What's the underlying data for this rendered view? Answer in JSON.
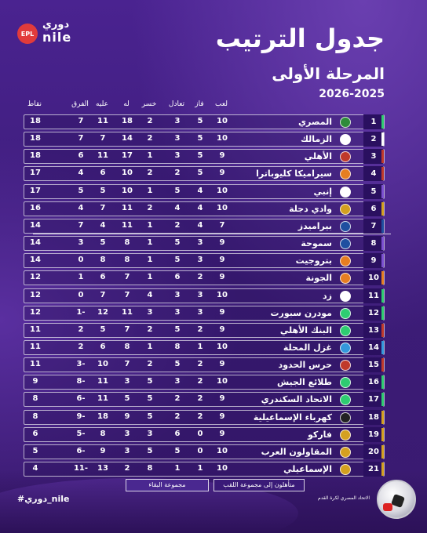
{
  "brand": {
    "logo_badge": "EPL",
    "logo_ar": "دوري",
    "logo_en": "nile"
  },
  "title": "جدول الترتيب",
  "subtitle": "المرحلة الأولى",
  "season": "2026-2025",
  "headers": {
    "played": "لعب",
    "won": "فاز",
    "drawn": "تعادل",
    "lost": "خسر",
    "gf": "له",
    "ga": "عليه",
    "gd": "الفرق",
    "pts": "نقاط"
  },
  "colors": {
    "green_zone": "#2ecc71",
    "red_zone": "#c0392b",
    "gold": "#d4a020",
    "purple": "#7b4fd0",
    "white": "#ffffff"
  },
  "rows": [
    {
      "rank": "1",
      "team": "المصري",
      "played": "10",
      "won": "5",
      "drawn": "3",
      "lost": "2",
      "gf": "18",
      "ga": "11",
      "gd": "7",
      "pts": "18",
      "bar": "#2ecc71",
      "crest": "#2e8b3a"
    },
    {
      "rank": "2",
      "team": "الزمالك",
      "played": "10",
      "won": "5",
      "drawn": "3",
      "lost": "2",
      "gf": "14",
      "ga": "7",
      "gd": "7",
      "pts": "18",
      "bar": "#ffffff",
      "crest": "#ffffff"
    },
    {
      "rank": "3",
      "team": "الأهلي",
      "played": "9",
      "won": "5",
      "drawn": "3",
      "lost": "1",
      "gf": "17",
      "ga": "11",
      "gd": "6",
      "pts": "18",
      "bar": "#c0392b",
      "crest": "#c0392b"
    },
    {
      "rank": "4",
      "team": "سيراميكا كليوباترا",
      "played": "9",
      "won": "5",
      "drawn": "2",
      "lost": "2",
      "gf": "10",
      "ga": "6",
      "gd": "4",
      "pts": "17",
      "bar": "#c0392b",
      "crest": "#e67e22"
    },
    {
      "rank": "5",
      "team": "إنبي",
      "played": "10",
      "won": "4",
      "drawn": "5",
      "lost": "1",
      "gf": "10",
      "ga": "5",
      "gd": "5",
      "pts": "17",
      "bar": "#7b4fd0",
      "crest": "#ffffff"
    },
    {
      "rank": "6",
      "team": "وادي دجلة",
      "played": "10",
      "won": "4",
      "drawn": "4",
      "lost": "2",
      "gf": "11",
      "ga": "7",
      "gd": "4",
      "pts": "16",
      "bar": "#d4a020",
      "crest": "#d4a020"
    },
    {
      "rank": "7",
      "team": "بيراميدز",
      "played": "7",
      "won": "4",
      "drawn": "2",
      "lost": "1",
      "gf": "11",
      "ga": "4",
      "gd": "7",
      "pts": "14",
      "bar": "#1f4fa0",
      "crest": "#1f4fa0"
    },
    {
      "rank": "8",
      "team": "سموحة",
      "played": "9",
      "won": "3",
      "drawn": "5",
      "lost": "1",
      "gf": "8",
      "ga": "5",
      "gd": "3",
      "pts": "14",
      "bar": "#7b4fd0",
      "crest": "#1f4fa0"
    },
    {
      "rank": "9",
      "team": "بتروجيت",
      "played": "9",
      "won": "3",
      "drawn": "5",
      "lost": "1",
      "gf": "8",
      "ga": "8",
      "gd": "0",
      "pts": "14",
      "bar": "#7b4fd0",
      "crest": "#e67e22"
    },
    {
      "rank": "10",
      "team": "الجونة",
      "played": "9",
      "won": "2",
      "drawn": "6",
      "lost": "1",
      "gf": "7",
      "ga": "6",
      "gd": "1",
      "pts": "12",
      "bar": "#e67e22",
      "crest": "#e67e22"
    },
    {
      "rank": "11",
      "team": "زد",
      "played": "10",
      "won": "3",
      "drawn": "3",
      "lost": "4",
      "gf": "7",
      "ga": "7",
      "gd": "0",
      "pts": "12",
      "bar": "#2ecc71",
      "crest": "#ffffff"
    },
    {
      "rank": "12",
      "team": "مودرن سبورت",
      "played": "9",
      "won": "3",
      "drawn": "3",
      "lost": "3",
      "gf": "11",
      "ga": "12",
      "gd": "1-",
      "pts": "12",
      "bar": "#2ecc71",
      "crest": "#2ecc71"
    },
    {
      "rank": "13",
      "team": "البنك الأهلي",
      "played": "9",
      "won": "2",
      "drawn": "5",
      "lost": "2",
      "gf": "7",
      "ga": "5",
      "gd": "2",
      "pts": "11",
      "bar": "#c0392b",
      "crest": "#2ecc71"
    },
    {
      "rank": "14",
      "team": "غزل المحلة",
      "played": "10",
      "won": "1",
      "drawn": "8",
      "lost": "1",
      "gf": "8",
      "ga": "6",
      "gd": "2",
      "pts": "11",
      "bar": "#3498db",
      "crest": "#3498db"
    },
    {
      "rank": "15",
      "team": "حرس الحدود",
      "played": "9",
      "won": "2",
      "drawn": "5",
      "lost": "2",
      "gf": "7",
      "ga": "10",
      "gd": "3-",
      "pts": "11",
      "bar": "#c0392b",
      "crest": "#c0392b"
    },
    {
      "rank": "16",
      "team": "طلائع الجيش",
      "played": "10",
      "won": "2",
      "drawn": "3",
      "lost": "5",
      "gf": "3",
      "ga": "11",
      "gd": "8-",
      "pts": "9",
      "bar": "#2ecc71",
      "crest": "#2ecc71"
    },
    {
      "rank": "17",
      "team": "الاتحاد السكندري",
      "played": "9",
      "won": "2",
      "drawn": "2",
      "lost": "5",
      "gf": "5",
      "ga": "11",
      "gd": "6-",
      "pts": "8",
      "bar": "#2ecc71",
      "crest": "#2ecc71"
    },
    {
      "rank": "18",
      "team": "كهرباء الإسماعيلية",
      "played": "9",
      "won": "2",
      "drawn": "2",
      "lost": "5",
      "gf": "9",
      "ga": "18",
      "gd": "9-",
      "pts": "8",
      "bar": "#d4a020",
      "crest": "#222222"
    },
    {
      "rank": "19",
      "team": "فاركو",
      "played": "9",
      "won": "0",
      "drawn": "6",
      "lost": "3",
      "gf": "3",
      "ga": "8",
      "gd": "5-",
      "pts": "6",
      "bar": "#d4a020",
      "crest": "#d4a020"
    },
    {
      "rank": "20",
      "team": "المقاولون العرب",
      "played": "10",
      "won": "0",
      "drawn": "5",
      "lost": "5",
      "gf": "3",
      "ga": "9",
      "gd": "6-",
      "pts": "5",
      "bar": "#d4a020",
      "crest": "#d4a020"
    },
    {
      "rank": "21",
      "team": "الإسماعيلي",
      "played": "10",
      "won": "1",
      "drawn": "1",
      "lost": "8",
      "gf": "2",
      "ga": "13",
      "gd": "11-",
      "pts": "4",
      "bar": "#d4a020",
      "crest": "#d4a020"
    }
  ],
  "legend": {
    "title_group": "متأهلون إلى مجموعة اللقب",
    "relegation_group": "مجموعة البقاء"
  },
  "hashtag": "#دوري_nile",
  "federation": "الاتحاد المصري لكرة القدم"
}
